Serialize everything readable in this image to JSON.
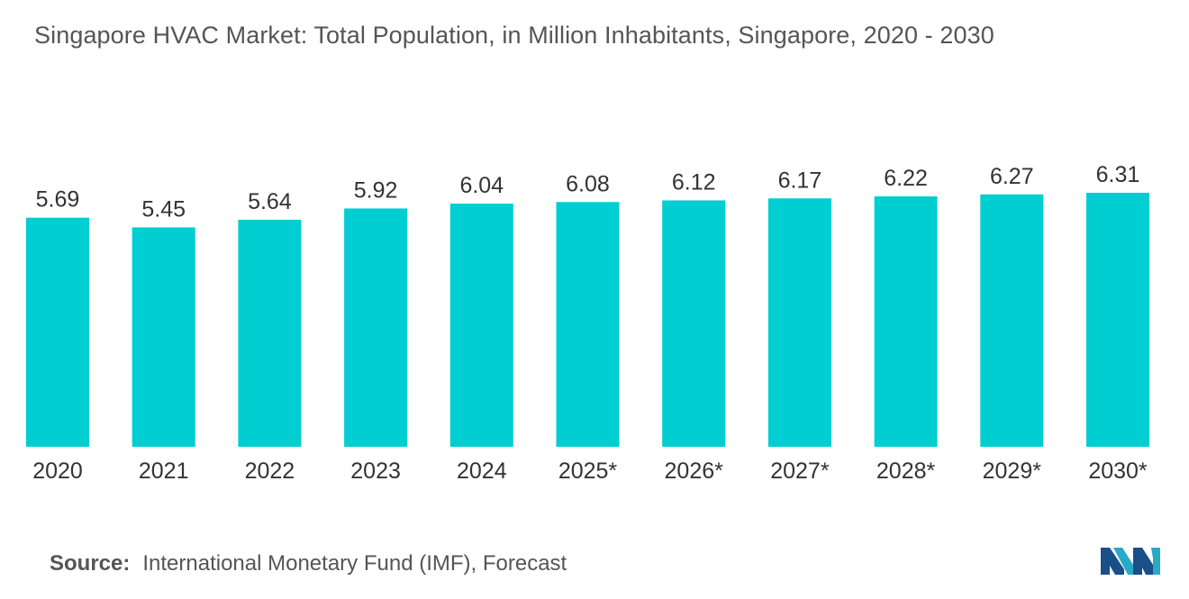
{
  "title": "Singapore HVAC Market: Total Population, in Million Inhabitants, Singapore, 2020 - 2030",
  "source": {
    "label": "Source:",
    "text": "International Monetary Fund (IMF), Forecast"
  },
  "colors": {
    "bar": "#00CED1",
    "text": "#333333",
    "title": "#555555"
  },
  "chart_data": {
    "type": "bar",
    "title": "Singapore HVAC Market: Total Population, in Million Inhabitants, Singapore, 2020 - 2030",
    "categories": [
      "2020",
      "2021",
      "2022",
      "2023",
      "2024",
      "2025*",
      "2026*",
      "2027*",
      "2028*",
      "2029*",
      "2030*"
    ],
    "values": [
      5.69,
      5.45,
      5.64,
      5.92,
      6.04,
      6.08,
      6.12,
      6.17,
      6.22,
      6.27,
      6.31
    ],
    "value_labels": [
      "5.69",
      "5.45",
      "5.64",
      "5.92",
      "6.04",
      "6.08",
      "6.12",
      "6.17",
      "6.22",
      "6.27",
      "6.31"
    ],
    "xlabel": "",
    "ylabel": "",
    "ylim": [
      0,
      6.55
    ],
    "grid": false,
    "legend": "none"
  }
}
